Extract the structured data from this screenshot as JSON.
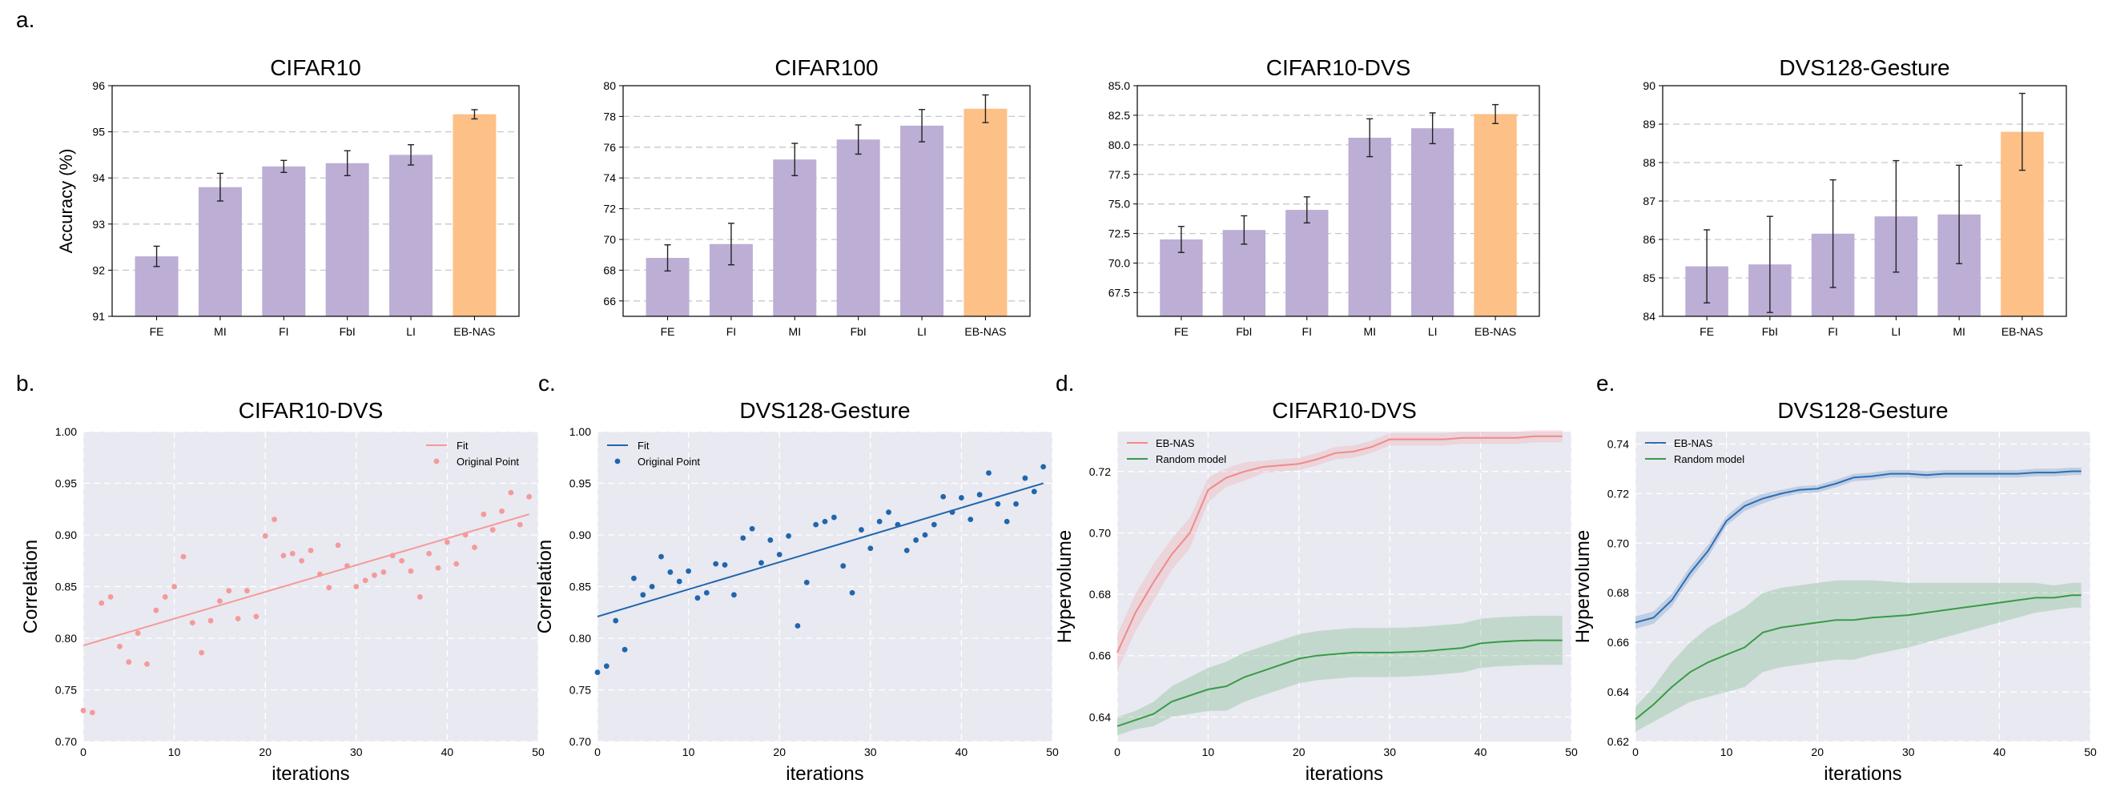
{
  "panel_labels": [
    "a.",
    "b.",
    "c.",
    "d.",
    "e."
  ],
  "colors": {
    "bar_default": "#bcaed4",
    "bar_highlight": "#fdc086",
    "fit_pink": "#f49a9a",
    "fit_blue": "#2166ac",
    "ebnas_pink": "#f08a8a",
    "ebnas_blue": "#2d6db3",
    "random_green": "#3a9a48",
    "plot_bg": "#e9e9f1",
    "grid_dash": "#c8c8c8",
    "grid_white": "#ffffff"
  },
  "chart_data": [
    {
      "id": "bar-cifar10",
      "type": "bar",
      "title": "CIFAR10",
      "ylabel": "Accuracy (%)",
      "xlabel": "",
      "categories": [
        "FE",
        "MI",
        "FI",
        "FbI",
        "LI",
        "EB-NAS"
      ],
      "values": [
        92.3,
        93.8,
        94.25,
        94.32,
        94.5,
        95.38
      ],
      "errors": [
        0.22,
        0.3,
        0.13,
        0.27,
        0.22,
        0.1
      ],
      "highlight": "EB-NAS",
      "ylim": [
        91,
        96
      ],
      "yticks": [
        "91",
        "92",
        "93",
        "94",
        "95",
        "96"
      ]
    },
    {
      "id": "bar-cifar100",
      "type": "bar",
      "title": "CIFAR100",
      "ylabel": "",
      "xlabel": "",
      "categories": [
        "FE",
        "FI",
        "MI",
        "FbI",
        "LI",
        "EB-NAS"
      ],
      "values": [
        68.8,
        69.7,
        75.2,
        76.5,
        77.4,
        78.5
      ],
      "errors": [
        0.85,
        1.35,
        1.05,
        0.95,
        1.05,
        0.9
      ],
      "highlight": "EB-NAS",
      "ylim": [
        65,
        80
      ],
      "yticks": [
        "66",
        "68",
        "70",
        "72",
        "74",
        "76",
        "78",
        "80"
      ]
    },
    {
      "id": "bar-cifar10dvs",
      "type": "bar",
      "title": "CIFAR10-DVS",
      "ylabel": "",
      "xlabel": "",
      "categories": [
        "FE",
        "FbI",
        "FI",
        "MI",
        "LI",
        "EB-NAS"
      ],
      "values": [
        72.0,
        72.8,
        74.5,
        80.6,
        81.4,
        82.6
      ],
      "errors": [
        1.1,
        1.2,
        1.1,
        1.6,
        1.3,
        0.8
      ],
      "highlight": "EB-NAS",
      "ylim": [
        65.5,
        85
      ],
      "yticks": [
        "67.5",
        "70.0",
        "72.5",
        "75.0",
        "77.5",
        "80.0",
        "82.5",
        "85.0"
      ]
    },
    {
      "id": "bar-dvs128",
      "type": "bar",
      "title": "DVS128-Gesture",
      "ylabel": "",
      "xlabel": "",
      "categories": [
        "FE",
        "FbI",
        "FI",
        "LI",
        "MI",
        "EB-NAS"
      ],
      "values": [
        85.3,
        85.35,
        86.15,
        86.6,
        86.65,
        88.8
      ],
      "errors": [
        0.95,
        1.25,
        1.4,
        1.45,
        1.28,
        1.0
      ],
      "highlight": "EB-NAS",
      "ylim": [
        84,
        90
      ],
      "yticks": [
        "84",
        "85",
        "86",
        "87",
        "88",
        "89",
        "90"
      ]
    },
    {
      "id": "scatter-cifar10dvs",
      "type": "scatter",
      "title": "CIFAR10-DVS",
      "xlabel": "iterations",
      "ylabel": "Correlation",
      "xlim": [
        0,
        50
      ],
      "ylim": [
        0.7,
        1.0
      ],
      "xticks": [
        "0",
        "10",
        "20",
        "30",
        "40",
        "50"
      ],
      "yticks": [
        "0.70",
        "0.75",
        "0.80",
        "0.85",
        "0.90",
        "0.95",
        "1.00"
      ],
      "legend": [
        "Fit",
        "Original Point"
      ],
      "legend_position": "top-right",
      "color": "pink",
      "fit": [
        0.793,
        0.92
      ],
      "x": [
        0,
        1,
        2,
        3,
        4,
        5,
        6,
        7,
        8,
        9,
        10,
        11,
        12,
        13,
        14,
        15,
        16,
        17,
        18,
        19,
        20,
        21,
        22,
        23,
        24,
        25,
        26,
        27,
        28,
        29,
        30,
        31,
        32,
        33,
        34,
        35,
        36,
        37,
        38,
        39,
        40,
        41,
        42,
        43,
        44,
        45,
        46,
        47,
        48,
        49
      ],
      "y": [
        0.73,
        0.728,
        0.834,
        0.84,
        0.792,
        0.777,
        0.805,
        0.775,
        0.827,
        0.84,
        0.85,
        0.879,
        0.815,
        0.786,
        0.817,
        0.836,
        0.846,
        0.819,
        0.846,
        0.821,
        0.899,
        0.915,
        0.88,
        0.882,
        0.875,
        0.885,
        0.862,
        0.849,
        0.89,
        0.87,
        0.85,
        0.856,
        0.861,
        0.864,
        0.88,
        0.875,
        0.865,
        0.84,
        0.882,
        0.868,
        0.893,
        0.872,
        0.9,
        0.888,
        0.92,
        0.905,
        0.923,
        0.941,
        0.91,
        0.937
      ]
    },
    {
      "id": "scatter-dvs128",
      "type": "scatter",
      "title": "DVS128-Gesture",
      "xlabel": "iterations",
      "ylabel": "Correlation",
      "xlim": [
        0,
        50
      ],
      "ylim": [
        0.7,
        1.0
      ],
      "xticks": [
        "0",
        "10",
        "20",
        "30",
        "40",
        "50"
      ],
      "yticks": [
        "0.70",
        "0.75",
        "0.80",
        "0.85",
        "0.90",
        "0.95",
        "1.00"
      ],
      "legend": [
        "Fit",
        "Original Point"
      ],
      "legend_position": "top-left",
      "color": "blue",
      "fit": [
        0.821,
        0.95
      ],
      "x": [
        0,
        1,
        2,
        3,
        4,
        5,
        6,
        7,
        8,
        9,
        10,
        11,
        12,
        13,
        14,
        15,
        16,
        17,
        18,
        19,
        20,
        21,
        22,
        23,
        24,
        25,
        26,
        27,
        28,
        29,
        30,
        31,
        32,
        33,
        34,
        35,
        36,
        37,
        38,
        39,
        40,
        41,
        42,
        43,
        44,
        45,
        46,
        47,
        48,
        49
      ],
      "y": [
        0.767,
        0.773,
        0.817,
        0.789,
        0.858,
        0.842,
        0.85,
        0.879,
        0.864,
        0.855,
        0.865,
        0.839,
        0.844,
        0.872,
        0.871,
        0.842,
        0.897,
        0.906,
        0.873,
        0.895,
        0.881,
        0.899,
        0.812,
        0.854,
        0.91,
        0.913,
        0.917,
        0.87,
        0.844,
        0.905,
        0.887,
        0.913,
        0.922,
        0.91,
        0.885,
        0.895,
        0.9,
        0.91,
        0.937,
        0.922,
        0.936,
        0.915,
        0.939,
        0.96,
        0.93,
        0.913,
        0.93,
        0.955,
        0.942,
        0.966
      ]
    },
    {
      "id": "hv-cifar10dvs",
      "type": "line",
      "title": "CIFAR10-DVS",
      "xlabel": "iterations",
      "ylabel": "Hypervolume",
      "xlim": [
        0,
        50
      ],
      "ylim": [
        0.632,
        0.733
      ],
      "xticks": [
        "0",
        "10",
        "20",
        "30",
        "40",
        "50"
      ],
      "ytick_values": [
        0.64,
        0.66,
        0.68,
        0.7,
        0.72
      ],
      "yticks": [
        "0.64",
        "0.66",
        "0.68",
        "0.70",
        "0.72"
      ],
      "legend_position": "top-left",
      "x": [
        0,
        2,
        4,
        6,
        8,
        10,
        12,
        14,
        16,
        18,
        20,
        22,
        24,
        26,
        28,
        30,
        32,
        34,
        36,
        38,
        40,
        42,
        44,
        46,
        48,
        49
      ],
      "series": [
        {
          "name": "EB-NAS",
          "color": "pink",
          "values": [
            0.661,
            0.674,
            0.684,
            0.693,
            0.7,
            0.714,
            0.718,
            0.72,
            0.7215,
            0.722,
            0.7225,
            0.724,
            0.726,
            0.7265,
            0.728,
            0.7305,
            0.7305,
            0.7305,
            0.7305,
            0.731,
            0.731,
            0.731,
            0.731,
            0.7315,
            0.7315,
            0.7315
          ],
          "spread": [
            0.006,
            0.006,
            0.006,
            0.005,
            0.005,
            0.004,
            0.003,
            0.003,
            0.002,
            0.002,
            0.002,
            0.002,
            0.002,
            0.002,
            0.002,
            0.002,
            0.002,
            0.002,
            0.002,
            0.002,
            0.002,
            0.002,
            0.002,
            0.002,
            0.002,
            0.002
          ]
        },
        {
          "name": "Random model",
          "color": "green",
          "values": [
            0.637,
            0.639,
            0.641,
            0.645,
            0.647,
            0.649,
            0.65,
            0.653,
            0.655,
            0.657,
            0.659,
            0.66,
            0.6605,
            0.661,
            0.661,
            0.661,
            0.6612,
            0.6615,
            0.662,
            0.6625,
            0.664,
            0.6645,
            0.6648,
            0.665,
            0.665,
            0.665
          ],
          "spread": [
            0.003,
            0.003,
            0.004,
            0.005,
            0.006,
            0.007,
            0.008,
            0.008,
            0.008,
            0.008,
            0.008,
            0.008,
            0.008,
            0.008,
            0.008,
            0.008,
            0.008,
            0.008,
            0.008,
            0.008,
            0.008,
            0.008,
            0.008,
            0.008,
            0.008,
            0.008
          ]
        }
      ]
    },
    {
      "id": "hv-dvs128",
      "type": "line",
      "title": "DVS128-Gesture",
      "xlabel": "iterations",
      "ylabel": "Hypervolume",
      "xlim": [
        0,
        50
      ],
      "ylim": [
        0.62,
        0.745
      ],
      "xticks": [
        "0",
        "10",
        "20",
        "30",
        "40",
        "50"
      ],
      "ytick_values": [
        0.62,
        0.64,
        0.66,
        0.68,
        0.7,
        0.72,
        0.74
      ],
      "yticks": [
        "0.62",
        "0.64",
        "0.66",
        "0.68",
        "0.70",
        "0.72",
        "0.74"
      ],
      "legend_position": "top-left",
      "x": [
        0,
        2,
        4,
        6,
        8,
        10,
        12,
        14,
        16,
        18,
        20,
        22,
        24,
        26,
        28,
        30,
        32,
        34,
        36,
        38,
        40,
        42,
        44,
        46,
        48,
        49
      ],
      "series": [
        {
          "name": "EB-NAS",
          "color": "blue",
          "values": [
            0.668,
            0.67,
            0.677,
            0.688,
            0.697,
            0.709,
            0.715,
            0.718,
            0.72,
            0.7215,
            0.722,
            0.724,
            0.7265,
            0.727,
            0.728,
            0.728,
            0.7275,
            0.728,
            0.728,
            0.728,
            0.728,
            0.728,
            0.7285,
            0.7285,
            0.729,
            0.729
          ],
          "spread": [
            0.0025,
            0.0025,
            0.0025,
            0.0025,
            0.0025,
            0.002,
            0.002,
            0.002,
            0.0015,
            0.0015,
            0.0015,
            0.0015,
            0.0015,
            0.0015,
            0.0015,
            0.0015,
            0.0015,
            0.0015,
            0.0015,
            0.0015,
            0.0015,
            0.0015,
            0.0015,
            0.0015,
            0.0015,
            0.0015
          ]
        },
        {
          "name": "Random model",
          "color": "green",
          "values": [
            0.629,
            0.635,
            0.642,
            0.648,
            0.652,
            0.655,
            0.658,
            0.664,
            0.666,
            0.667,
            0.668,
            0.669,
            0.669,
            0.67,
            0.6705,
            0.671,
            0.672,
            0.673,
            0.674,
            0.675,
            0.676,
            0.677,
            0.678,
            0.678,
            0.679,
            0.679
          ],
          "spread": [
            0.005,
            0.007,
            0.01,
            0.012,
            0.014,
            0.015,
            0.016,
            0.016,
            0.016,
            0.016,
            0.016,
            0.016,
            0.016,
            0.015,
            0.014,
            0.013,
            0.012,
            0.011,
            0.01,
            0.009,
            0.008,
            0.007,
            0.006,
            0.005,
            0.005,
            0.005
          ]
        }
      ]
    }
  ]
}
